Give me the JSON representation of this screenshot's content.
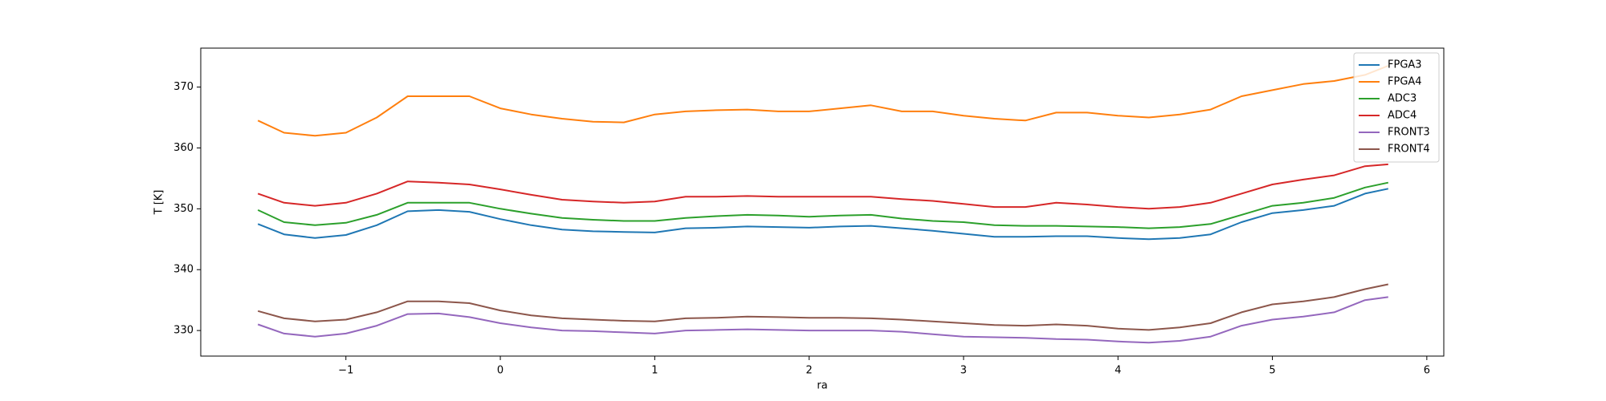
{
  "chart_data": {
    "type": "line",
    "x_label": "ra",
    "y_label": "T [K]",
    "x": [
      -1.57,
      -1.4,
      -1.2,
      -1.0,
      -0.8,
      -0.6,
      -0.4,
      -0.2,
      0,
      0.2,
      0.4,
      0.6,
      0.8,
      1.0,
      1.2,
      1.4,
      1.6,
      1.8,
      2.0,
      2.2,
      2.4,
      2.6,
      2.8,
      3.0,
      3.2,
      3.4,
      3.6,
      3.8,
      4.0,
      4.2,
      4.4,
      4.6,
      4.8,
      5.0,
      5.2,
      5.4,
      5.6,
      5.75
    ],
    "series": [
      {
        "name": "FPGA3",
        "color": "#1f77b4",
        "values": [
          347.5,
          345.8,
          345.2,
          345.7,
          347.3,
          349.6,
          349.8,
          349.5,
          348.3,
          347.3,
          346.6,
          346.3,
          346.2,
          346.1,
          346.8,
          346.9,
          347.1,
          347,
          346.9,
          347.1,
          347.2,
          346.8,
          346.4,
          345.9,
          345.4,
          345.4,
          345.5,
          345.5,
          345.2,
          345,
          345.2,
          345.8,
          347.8,
          349.3,
          349.8,
          350.5,
          352.5,
          353.3
        ]
      },
      {
        "name": "FPGA4",
        "color": "#ff7f0e",
        "values": [
          364.5,
          362.5,
          362,
          362.5,
          365,
          368.5,
          368.5,
          368.5,
          366.5,
          365.5,
          364.8,
          364.3,
          364.2,
          365.5,
          366,
          366.2,
          366.3,
          366,
          366,
          366.5,
          367,
          366,
          366,
          365.3,
          364.8,
          364.5,
          365.8,
          365.8,
          365.3,
          365,
          365.5,
          366.3,
          368.5,
          369.5,
          370.5,
          371,
          372,
          373.5
        ]
      },
      {
        "name": "ADC3",
        "color": "#2ca02c",
        "values": [
          349.8,
          347.8,
          347.3,
          347.7,
          349,
          351,
          351,
          351,
          350,
          349.2,
          348.5,
          348.2,
          348,
          348,
          348.5,
          348.8,
          349,
          348.9,
          348.7,
          348.9,
          349,
          348.4,
          348,
          347.8,
          347.3,
          347.2,
          347.2,
          347.1,
          347,
          346.8,
          347,
          347.5,
          349,
          350.5,
          351,
          351.8,
          353.5,
          354.3
        ]
      },
      {
        "name": "ADC4",
        "color": "#d62728",
        "values": [
          352.5,
          351,
          350.5,
          351,
          352.5,
          354.5,
          354.3,
          354,
          353.2,
          352.3,
          351.5,
          351.2,
          351,
          351.2,
          352,
          352,
          352.1,
          352,
          352,
          352,
          352,
          351.6,
          351.3,
          350.8,
          350.3,
          350.3,
          351,
          350.7,
          350.3,
          350,
          350.3,
          351,
          352.5,
          354,
          354.8,
          355.5,
          357,
          357.3
        ]
      },
      {
        "name": "FRONT3",
        "color": "#9467bd",
        "values": [
          331,
          329.5,
          329,
          329.5,
          330.8,
          332.7,
          332.8,
          332.2,
          331.2,
          330.5,
          330,
          329.9,
          329.7,
          329.5,
          330,
          330.1,
          330.2,
          330.1,
          330,
          330,
          330,
          329.8,
          329.4,
          329,
          328.9,
          328.8,
          328.6,
          328.5,
          328.2,
          328,
          328.3,
          329,
          330.8,
          331.8,
          332.3,
          333,
          335,
          335.5
        ]
      },
      {
        "name": "FRONT4",
        "color": "#8c564b",
        "values": [
          333.2,
          332,
          331.5,
          331.8,
          333,
          334.8,
          334.8,
          334.5,
          333.3,
          332.5,
          332,
          331.8,
          331.6,
          331.5,
          332,
          332.1,
          332.3,
          332.2,
          332.1,
          332.1,
          332,
          331.8,
          331.5,
          331.2,
          330.9,
          330.8,
          331,
          330.8,
          330.3,
          330.1,
          330.5,
          331.2,
          333,
          334.3,
          334.8,
          335.5,
          336.8,
          337.6
        ]
      }
    ],
    "xlim": [
      -1.94,
      6.11
    ],
    "xticks": [
      {
        "value": -1,
        "label": "−1"
      },
      0,
      1,
      2,
      3,
      4,
      5,
      6
    ],
    "ylim": [
      325.8,
      376.4
    ],
    "yticks": [
      330,
      340,
      350,
      360,
      370
    ],
    "legend": "upper right"
  }
}
